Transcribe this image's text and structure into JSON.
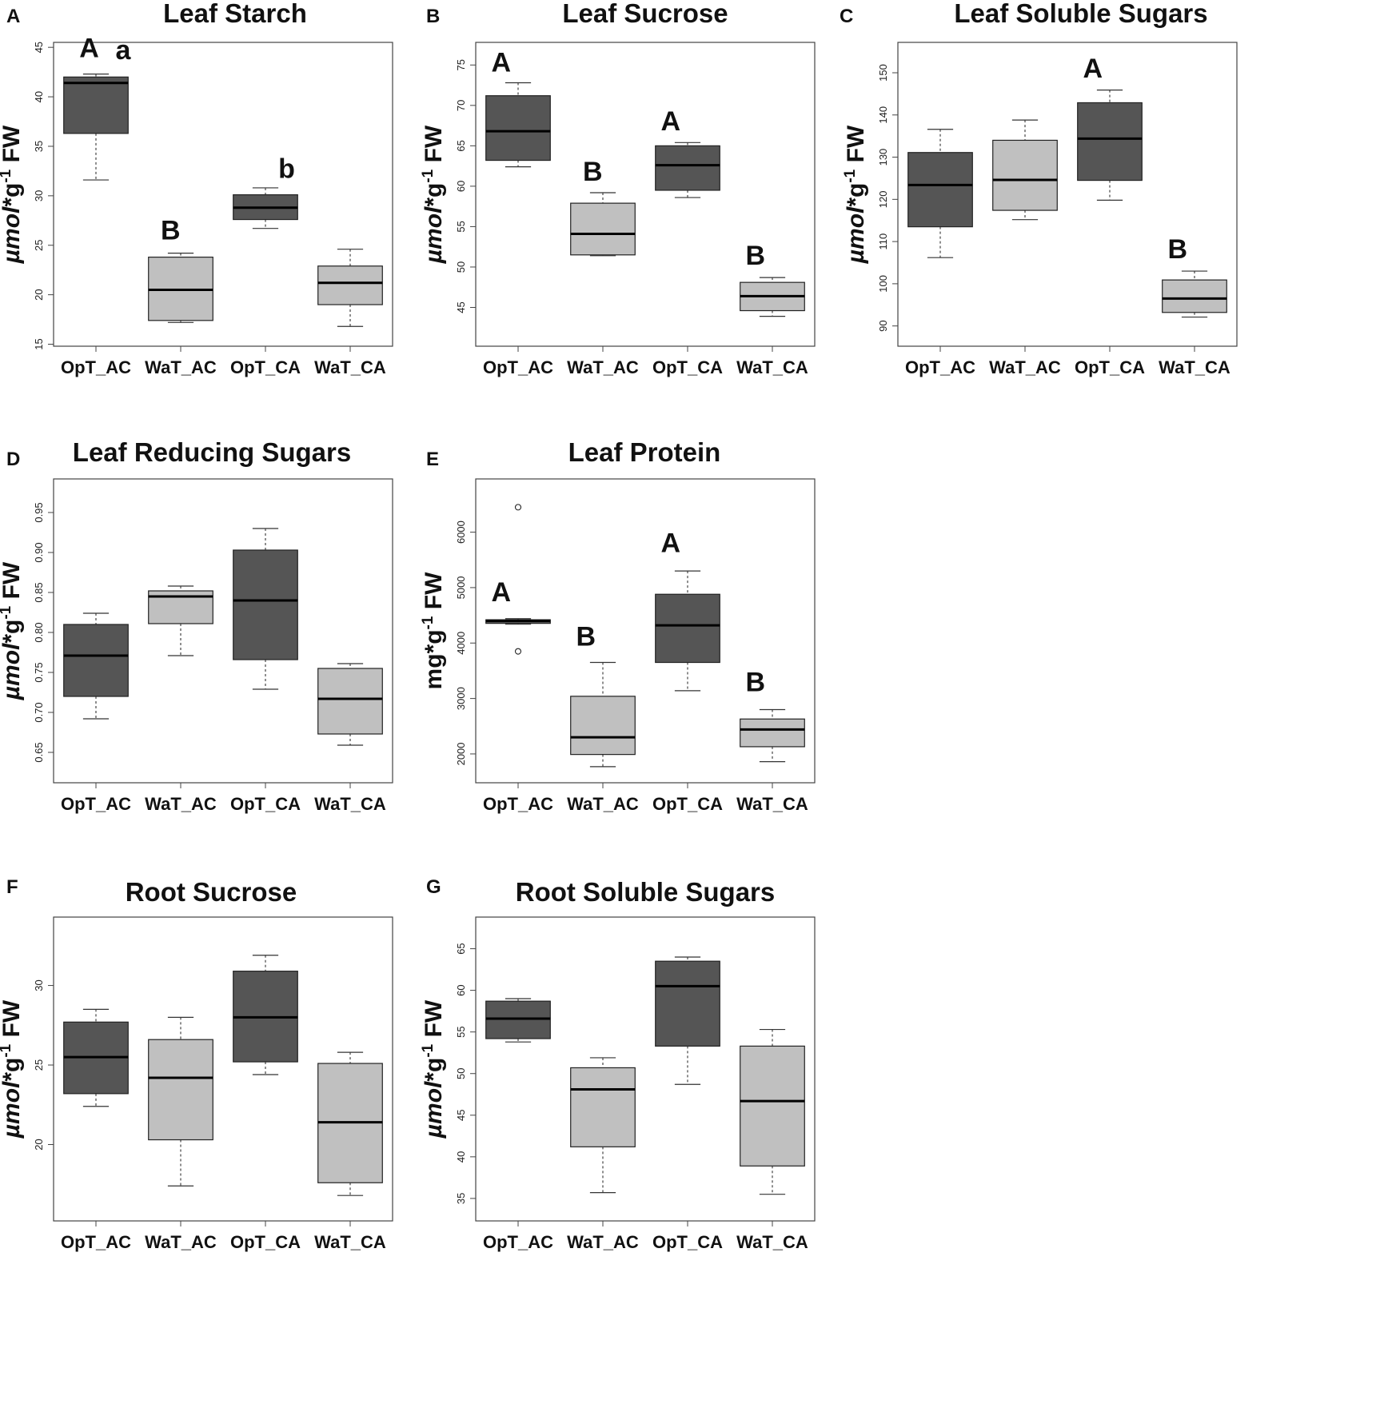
{
  "figure": {
    "background": "#ffffff"
  },
  "colors": {
    "dark": "#555555",
    "light": "#c0c0c0",
    "stroke": "#222222"
  },
  "chart_data": [
    {
      "panel": "A",
      "title": "Leaf Starch",
      "type": "boxplot",
      "ylabel": {
        "italic": "µmol",
        "rest": "*g",
        "sup": "-1",
        "tail": " FW"
      },
      "categories": [
        "OpT_AC",
        "WaT_AC",
        "OpT_CA",
        "WaT_CA"
      ],
      "ylim": [
        14.8,
        45.5
      ],
      "yticks": [
        15,
        20,
        25,
        30,
        35,
        40,
        45
      ],
      "boxes": [
        {
          "min": 31.6,
          "q1": 36.3,
          "median": 41.4,
          "q3": 42.0,
          "max": 42.3,
          "color": "dark"
        },
        {
          "min": 17.2,
          "q1": 17.4,
          "median": 20.5,
          "q3": 23.8,
          "max": 24.2,
          "color": "light"
        },
        {
          "min": 26.7,
          "q1": 27.6,
          "median": 28.8,
          "q3": 30.1,
          "max": 30.8,
          "color": "dark"
        },
        {
          "min": 16.8,
          "q1": 19.0,
          "median": 21.2,
          "q3": 22.9,
          "max": 24.6,
          "color": "light"
        }
      ],
      "outliers": [],
      "sig": [
        {
          "label": "A",
          "cat": 0,
          "y": 44.0,
          "dx": -0.08
        },
        {
          "label": "a",
          "cat": 0,
          "y": 43.8,
          "dx": 0.32
        },
        {
          "label": "B",
          "cat": 1,
          "y": 25.6,
          "dx": -0.12
        },
        {
          "label": "b",
          "cat": 2,
          "y": 31.8,
          "dx": 0.25
        }
      ]
    },
    {
      "panel": "B",
      "title": "Leaf Sucrose",
      "type": "boxplot",
      "ylabel": {
        "italic": "µmol",
        "rest": "*g",
        "sup": "-1",
        "tail": " FW"
      },
      "categories": [
        "OpT_AC",
        "WaT_AC",
        "OpT_CA",
        "WaT_CA"
      ],
      "ylim": [
        40.2,
        77.8
      ],
      "yticks": [
        45,
        50,
        55,
        60,
        65,
        70,
        75
      ],
      "boxes": [
        {
          "min": 62.4,
          "q1": 63.2,
          "median": 66.8,
          "q3": 71.2,
          "max": 72.8,
          "color": "dark"
        },
        {
          "min": 51.4,
          "q1": 51.5,
          "median": 54.1,
          "q3": 57.9,
          "max": 59.2,
          "color": "light"
        },
        {
          "min": 58.6,
          "q1": 59.5,
          "median": 62.6,
          "q3": 65.0,
          "max": 65.4,
          "color": "dark"
        },
        {
          "min": 43.9,
          "q1": 44.6,
          "median": 46.4,
          "q3": 48.1,
          "max": 48.7,
          "color": "light"
        }
      ],
      "outliers": [],
      "sig": [
        {
          "label": "A",
          "cat": 0,
          "y": 74.2,
          "dx": -0.2
        },
        {
          "label": "B",
          "cat": 1,
          "y": 60.7,
          "dx": -0.12
        },
        {
          "label": "A",
          "cat": 2,
          "y": 66.9,
          "dx": -0.2
        },
        {
          "label": "B",
          "cat": 3,
          "y": 50.3,
          "dx": -0.2
        }
      ]
    },
    {
      "panel": "C",
      "title": "Leaf Soluble Sugars",
      "type": "boxplot",
      "ylabel": {
        "italic": "µmol",
        "rest": "*g",
        "sup": "-1",
        "tail": " FW"
      },
      "categories": [
        "OpT_AC",
        "WaT_AC",
        "OpT_CA",
        "WaT_CA"
      ],
      "ylim": [
        85.2,
        157.2
      ],
      "yticks": [
        90,
        100,
        110,
        120,
        130,
        140,
        150
      ],
      "boxes": [
        {
          "min": 106.2,
          "q1": 113.5,
          "median": 123.4,
          "q3": 131.1,
          "max": 136.6,
          "color": "dark"
        },
        {
          "min": 115.2,
          "q1": 117.4,
          "median": 124.6,
          "q3": 134.0,
          "max": 138.8,
          "color": "light"
        },
        {
          "min": 119.8,
          "q1": 124.5,
          "median": 134.4,
          "q3": 142.9,
          "max": 145.9,
          "color": "dark"
        },
        {
          "min": 92.1,
          "q1": 93.2,
          "median": 96.5,
          "q3": 100.9,
          "max": 103.0,
          "color": "light"
        }
      ],
      "outliers": [],
      "sig": [
        {
          "label": "A",
          "cat": 2,
          "y": 148.9,
          "dx": -0.2
        },
        {
          "label": "B",
          "cat": 3,
          "y": 106.0,
          "dx": -0.2
        }
      ]
    },
    {
      "panel": "D",
      "title": "Leaf Reducing Sugars",
      "type": "boxplot",
      "ylabel": {
        "italic": "µmol",
        "rest": "*g",
        "sup": "-1",
        "tail": " FW"
      },
      "categories": [
        "OpT_AC",
        "WaT_AC",
        "OpT_CA",
        "WaT_CA"
      ],
      "ylim": [
        0.612,
        0.992
      ],
      "yticks": [
        0.65,
        0.7,
        0.75,
        0.8,
        0.85,
        0.9,
        0.95
      ],
      "tickDecimals": 2,
      "boxes": [
        {
          "min": 0.692,
          "q1": 0.72,
          "median": 0.771,
          "q3": 0.81,
          "max": 0.824,
          "color": "dark"
        },
        {
          "min": 0.771,
          "q1": 0.811,
          "median": 0.845,
          "q3": 0.852,
          "max": 0.858,
          "color": "light"
        },
        {
          "min": 0.729,
          "q1": 0.766,
          "median": 0.84,
          "q3": 0.903,
          "max": 0.93,
          "color": "dark"
        },
        {
          "min": 0.659,
          "q1": 0.673,
          "median": 0.717,
          "q3": 0.755,
          "max": 0.761,
          "color": "light"
        }
      ],
      "outliers": [],
      "sig": []
    },
    {
      "panel": "E",
      "title": "Leaf Protein",
      "type": "boxplot",
      "ylabel": {
        "italic": "",
        "rest": "mg*g",
        "sup": "-1",
        "tail": " FW"
      },
      "categories": [
        "OpT_AC",
        "WaT_AC",
        "OpT_CA",
        "WaT_CA"
      ],
      "ylim": [
        1480,
        6960
      ],
      "yticks": [
        2000,
        3000,
        4000,
        5000,
        6000
      ],
      "boxes": [
        {
          "min": 4340,
          "q1": 4355,
          "median": 4400,
          "q3": 4420,
          "max": 4440,
          "color": "dark"
        },
        {
          "min": 1770,
          "q1": 1990,
          "median": 2300,
          "q3": 3040,
          "max": 3650,
          "color": "light"
        },
        {
          "min": 3140,
          "q1": 3650,
          "median": 4320,
          "q3": 4880,
          "max": 5300,
          "color": "dark"
        },
        {
          "min": 1860,
          "q1": 2130,
          "median": 2440,
          "q3": 2630,
          "max": 2800,
          "color": "light"
        }
      ],
      "outliers": [
        {
          "cat": 0,
          "y": 6450
        },
        {
          "cat": 0,
          "y": 3850
        }
      ],
      "sig": [
        {
          "label": "A",
          "cat": 0,
          "y": 4750,
          "dx": -0.2
        },
        {
          "label": "B",
          "cat": 1,
          "y": 3950,
          "dx": -0.2
        },
        {
          "label": "A",
          "cat": 2,
          "y": 5640,
          "dx": -0.2
        },
        {
          "label": "B",
          "cat": 3,
          "y": 3130,
          "dx": -0.2
        }
      ]
    },
    {
      "panel": "F",
      "title": "Root Sucrose",
      "type": "boxplot",
      "ylabel": {
        "italic": "µmol",
        "rest": "*g",
        "sup": "-1",
        "tail": " FW"
      },
      "categories": [
        "OpT_AC",
        "WaT_AC",
        "OpT_CA",
        "WaT_CA"
      ],
      "ylim": [
        15.2,
        34.3
      ],
      "yticks": [
        20,
        25,
        30
      ],
      "boxes": [
        {
          "min": 22.4,
          "q1": 23.2,
          "median": 25.5,
          "q3": 27.7,
          "max": 28.5,
          "color": "dark"
        },
        {
          "min": 17.4,
          "q1": 20.3,
          "median": 24.2,
          "q3": 26.6,
          "max": 28.0,
          "color": "light"
        },
        {
          "min": 24.4,
          "q1": 25.2,
          "median": 28.0,
          "q3": 30.9,
          "max": 31.9,
          "color": "dark"
        },
        {
          "min": 16.8,
          "q1": 17.6,
          "median": 21.4,
          "q3": 25.1,
          "max": 25.8,
          "color": "light"
        }
      ],
      "outliers": [],
      "sig": []
    },
    {
      "panel": "G",
      "title": "Root Soluble Sugars",
      "type": "boxplot",
      "ylabel": {
        "italic": "µmol",
        "rest": "*g",
        "sup": "-1",
        "tail": " FW"
      },
      "categories": [
        "OpT_AC",
        "WaT_AC",
        "OpT_CA",
        "WaT_CA"
      ],
      "ylim": [
        32.3,
        68.8
      ],
      "yticks": [
        35,
        40,
        45,
        50,
        55,
        60,
        65
      ],
      "boxes": [
        {
          "min": 53.8,
          "q1": 54.2,
          "median": 56.6,
          "q3": 58.7,
          "max": 59.0,
          "color": "dark"
        },
        {
          "min": 35.7,
          "q1": 41.2,
          "median": 48.1,
          "q3": 50.7,
          "max": 51.9,
          "color": "light"
        },
        {
          "min": 48.7,
          "q1": 53.3,
          "median": 60.5,
          "q3": 63.5,
          "max": 64.0,
          "color": "dark"
        },
        {
          "min": 35.5,
          "q1": 38.9,
          "median": 46.7,
          "q3": 53.3,
          "max": 55.3,
          "color": "light"
        }
      ],
      "outliers": [],
      "sig": []
    }
  ]
}
